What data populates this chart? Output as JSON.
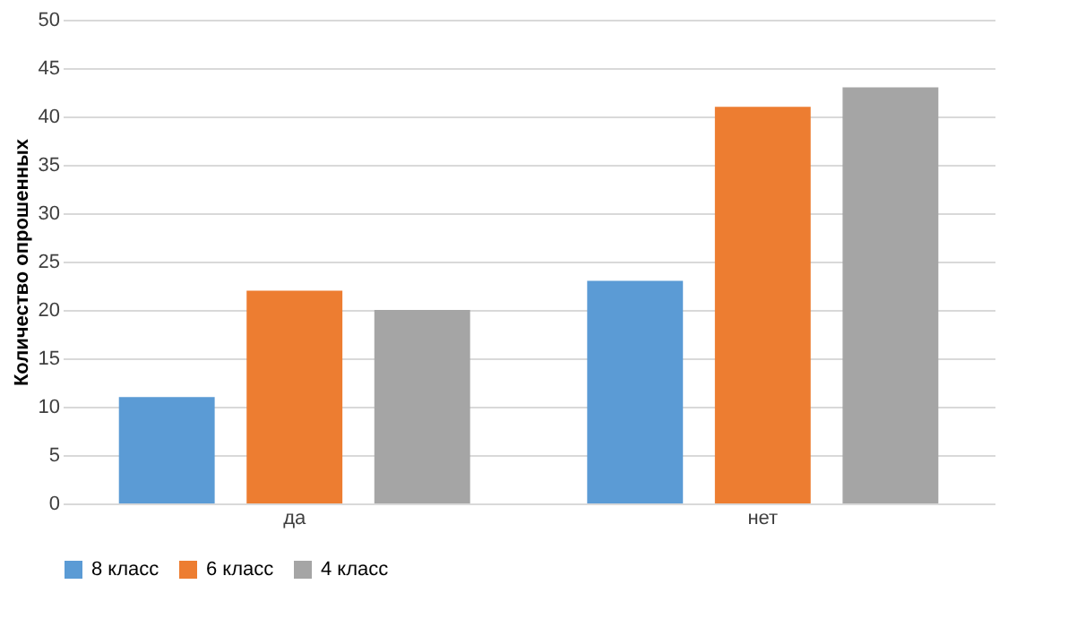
{
  "chart_data": {
    "type": "bar",
    "ylabel": "Количество опрошенных",
    "categories": [
      "да",
      "нет"
    ],
    "series": [
      {
        "name": "8 класс",
        "color": "#5b9bd5",
        "values": [
          11,
          23
        ]
      },
      {
        "name": "6 класс",
        "color": "#ed7d31",
        "values": [
          22,
          41
        ]
      },
      {
        "name": "4 класс",
        "color": "#a5a5a5",
        "values": [
          20,
          43
        ]
      }
    ],
    "ylim": [
      0,
      50
    ],
    "yticks": [
      0,
      5,
      10,
      15,
      20,
      25,
      30,
      35,
      40,
      45,
      50
    ],
    "grid": "y",
    "legend": "bottom"
  }
}
